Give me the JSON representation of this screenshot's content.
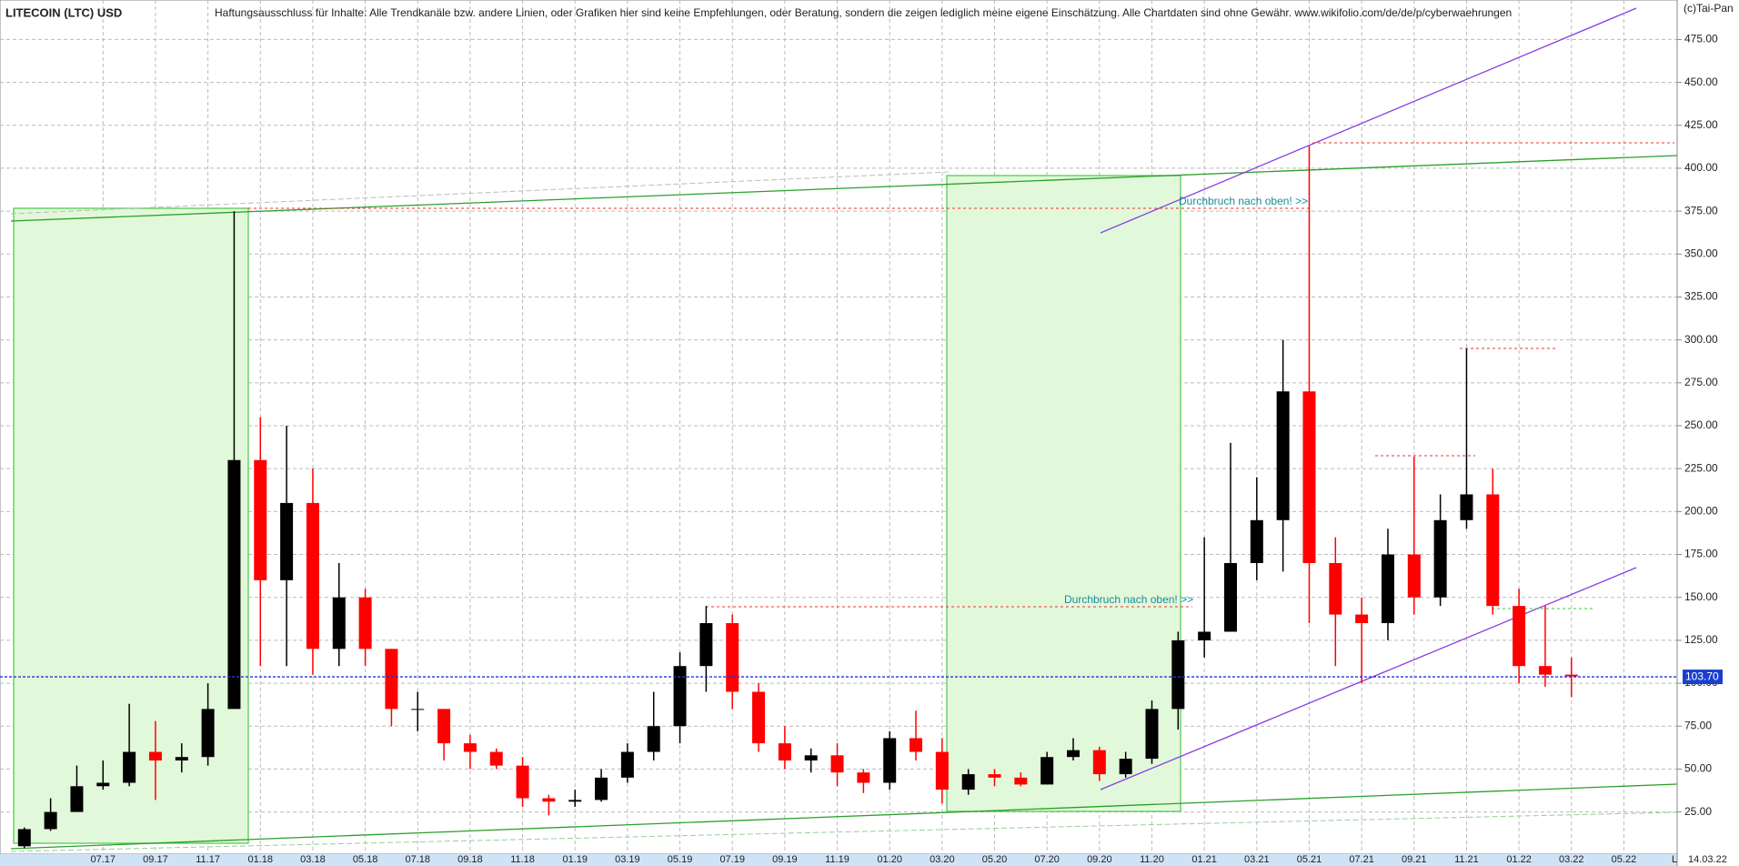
{
  "chart_data": {
    "type": "candlestick",
    "title": "LITECOIN (LTC) USD",
    "subtitle": "Haftungsausschluss für Inhalte: Alle Trendkanäle bzw. andere Linien, oder Grafiken hier sind keine Empfehlungen, oder Beratung, sondern die zeigen lediglich meine eigene Einschätzung. Alle Chartdaten sind ohne Gewähr.  www.wikifolio.com/de/de/p/cyberwaehrungen",
    "source": "(c)Tai-Pan",
    "annotations": [
      "Durchbruch nach oben! >>",
      "Durchbruch nach oben! >>"
    ],
    "date_label": "14.03.22",
    "corner_label": "L",
    "current": {
      "value": 103.7,
      "label": "103.70"
    },
    "categories": [
      null,
      null,
      null,
      "07.17",
      null,
      "09.17",
      null,
      "11.17",
      null,
      "01.18",
      null,
      "03.18",
      null,
      "05.18",
      null,
      "07.18",
      null,
      "09.18",
      null,
      "11.18",
      null,
      "01.19",
      null,
      "03.19",
      null,
      "05.19",
      null,
      "07.19",
      null,
      "09.19",
      null,
      "11.19",
      null,
      "01.20",
      null,
      "03.20",
      null,
      "05.20",
      null,
      "07.20",
      null,
      "09.20",
      null,
      "11.20",
      null,
      "01.21",
      null,
      "03.21",
      null,
      "05.21",
      null,
      "07.21",
      null,
      "09.21",
      null,
      "11.21",
      null,
      "01.22",
      null,
      "03.22",
      null,
      "05.22",
      null
    ],
    "open": [
      5,
      15,
      25,
      40,
      42,
      60,
      55,
      57,
      85,
      230,
      160,
      205,
      120,
      150,
      120,
      85,
      85,
      65,
      60,
      52,
      33,
      31,
      32,
      45,
      60,
      75,
      110,
      135,
      95,
      65,
      55,
      58,
      48,
      42,
      68,
      60,
      38,
      47,
      45,
      41,
      57,
      61,
      47,
      56,
      85,
      125,
      130,
      170,
      195,
      270,
      170,
      140,
      135,
      175,
      150,
      195,
      210,
      145,
      110,
      105,
      null,
      null,
      null
    ],
    "high": [
      16,
      33,
      52,
      55,
      88,
      78,
      65,
      100,
      375,
      255,
      250,
      225,
      170,
      155,
      120,
      95,
      85,
      70,
      62,
      57,
      35,
      38,
      50,
      65,
      95,
      118,
      145,
      140,
      100,
      75,
      62,
      65,
      50,
      72,
      84,
      68,
      50,
      50,
      48,
      60,
      68,
      63,
      60,
      90,
      130,
      185,
      240,
      220,
      300,
      413,
      185,
      150,
      190,
      232,
      210,
      295,
      225,
      155,
      145,
      115,
      null,
      null,
      null
    ],
    "low": [
      4,
      14,
      25,
      38,
      40,
      32,
      48,
      52,
      85,
      110,
      110,
      105,
      110,
      110,
      75,
      72,
      55,
      50,
      50,
      28,
      23,
      28,
      31,
      42,
      55,
      65,
      95,
      85,
      60,
      50,
      48,
      40,
      36,
      38,
      55,
      30,
      35,
      40,
      40,
      41,
      55,
      43,
      45,
      53,
      73,
      115,
      130,
      160,
      165,
      135,
      110,
      100,
      125,
      140,
      145,
      190,
      140,
      100,
      98,
      92,
      null,
      null,
      null
    ],
    "close": [
      15,
      25,
      40,
      42,
      60,
      55,
      57,
      85,
      230,
      160,
      205,
      120,
      150,
      120,
      85,
      85,
      65,
      60,
      52,
      33,
      31,
      32,
      45,
      60,
      75,
      110,
      135,
      95,
      65,
      55,
      58,
      48,
      42,
      68,
      60,
      38,
      47,
      45,
      41,
      57,
      61,
      47,
      56,
      85,
      125,
      130,
      170,
      195,
      270,
      170,
      140,
      135,
      175,
      150,
      195,
      210,
      145,
      110,
      105,
      104,
      null,
      null,
      null
    ],
    "colors": {
      "up": "#000000",
      "down": "#ff0000"
    },
    "ylim": [
      2,
      498
    ],
    "yticks": [
      {
        "value": 25,
        "label": "25.00"
      },
      {
        "value": 50,
        "label": "50.00"
      },
      {
        "value": 75,
        "label": "75.00"
      },
      {
        "value": 100,
        "label": "100.00"
      },
      {
        "value": 125,
        "label": "125.00"
      },
      {
        "value": 150,
        "label": "150.00"
      },
      {
        "value": 175,
        "label": "175.00"
      },
      {
        "value": 200,
        "label": "200.00"
      },
      {
        "value": 225,
        "label": "225.00"
      },
      {
        "value": 250,
        "label": "250.00"
      },
      {
        "value": 275,
        "label": "275.00"
      },
      {
        "value": 300,
        "label": "300.00"
      },
      {
        "value": 325,
        "label": "325.00"
      },
      {
        "value": 350,
        "label": "350.00"
      },
      {
        "value": 375,
        "label": "375.00"
      },
      {
        "value": 400,
        "label": "400.00"
      },
      {
        "value": 425,
        "label": "425.00"
      },
      {
        "value": 450,
        "label": "450.00"
      },
      {
        "value": 475,
        "label": "475.00"
      }
    ],
    "grid": true
  }
}
